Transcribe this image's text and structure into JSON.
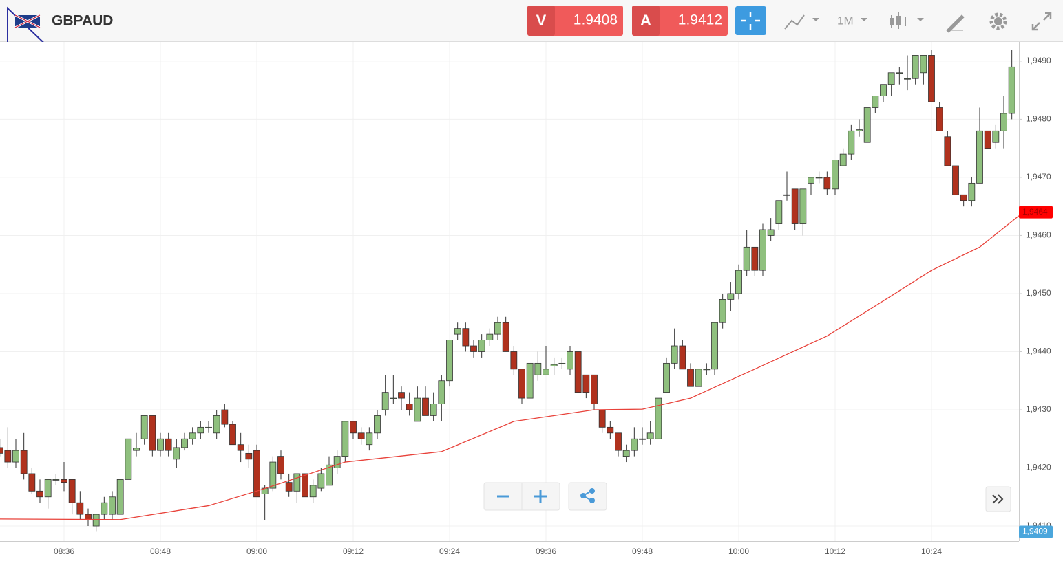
{
  "header": {
    "symbol": "GBPAUD",
    "sell_label": "V",
    "sell_price": "1.9408",
    "buy_label": "A",
    "buy_price": "1.9412",
    "timeframe": "1M"
  },
  "chart_data": {
    "type": "candlestick",
    "up_color": "#8fc07e",
    "down_color": "#b0321e",
    "categories": [
      null,
      null,
      null,
      null,
      null,
      null,
      null,
      null,
      "08:36",
      null,
      null,
      null,
      null,
      null,
      null,
      null,
      null,
      null,
      null,
      null,
      "08:48",
      null,
      null,
      null,
      null,
      null,
      null,
      null,
      null,
      null,
      null,
      null,
      "09:00",
      null,
      null,
      null,
      null,
      null,
      null,
      null,
      null,
      null,
      null,
      null,
      "09:12",
      null,
      null,
      null,
      null,
      null,
      null,
      null,
      null,
      null,
      null,
      null,
      "09:24",
      null,
      null,
      null,
      null,
      null,
      null,
      null,
      null,
      null,
      null,
      null,
      "09:36",
      null,
      null,
      null,
      null,
      null,
      null,
      null,
      null,
      null,
      null,
      null,
      "09:48",
      null,
      null,
      null,
      null,
      null,
      null,
      null,
      null,
      null,
      null,
      null,
      "10:00",
      null,
      null,
      null,
      null,
      null,
      null,
      null,
      null,
      null,
      null,
      null,
      "10:12",
      null,
      null,
      null,
      null,
      null,
      null,
      null,
      null,
      null,
      null,
      null,
      "10:24",
      null,
      null,
      null,
      null,
      null,
      null,
      null,
      null,
      null,
      null
    ],
    "ohlc": [
      [
        1.94235,
        1.9425,
        1.9422,
        1.94225
      ],
      [
        1.9423,
        1.9427,
        1.942,
        1.9421
      ],
      [
        1.9421,
        1.9425,
        1.942,
        1.9423
      ],
      [
        1.9423,
        1.9426,
        1.9418,
        1.9419
      ],
      [
        1.9419,
        1.942,
        1.94155,
        1.9416
      ],
      [
        1.9416,
        1.9418,
        1.9414,
        1.9415
      ],
      [
        1.9415,
        1.9418,
        1.9413,
        1.9418
      ],
      [
        1.9418,
        1.9419,
        1.9417,
        1.9418
      ],
      [
        1.9418,
        1.9421,
        1.9416,
        1.94175
      ],
      [
        1.9418,
        1.9418,
        1.9412,
        1.9414
      ],
      [
        1.9414,
        1.9416,
        1.9411,
        1.9412
      ],
      [
        1.9412,
        1.9413,
        1.941,
        1.9411
      ],
      [
        1.941,
        1.9412,
        1.9409,
        1.9412
      ],
      [
        1.9412,
        1.9415,
        1.9411,
        1.9414
      ],
      [
        1.9412,
        1.9416,
        1.9411,
        1.9415
      ],
      [
        1.9412,
        1.9418,
        1.9412,
        1.9418
      ],
      [
        1.9418,
        1.9425,
        1.9418,
        1.9425
      ],
      [
        1.9423,
        1.9426,
        1.9422,
        1.94234
      ],
      [
        1.9425,
        1.9429,
        1.9424,
        1.9429
      ],
      [
        1.9429,
        1.9429,
        1.9422,
        1.9423
      ],
      [
        1.9423,
        1.9426,
        1.9422,
        1.9425
      ],
      [
        1.9425,
        1.9426,
        1.9422,
        1.9423
      ],
      [
        1.94215,
        1.9425,
        1.942,
        1.94235
      ],
      [
        1.94235,
        1.9426,
        1.9423,
        1.9425
      ],
      [
        1.9425,
        1.9427,
        1.9424,
        1.9426
      ],
      [
        1.9426,
        1.9428,
        1.9425,
        1.9427
      ],
      [
        1.9427,
        1.9428,
        1.9426,
        1.9427
      ],
      [
        1.9426,
        1.943,
        1.9425,
        1.9429
      ],
      [
        1.943,
        1.9431,
        1.9427,
        1.94275
      ],
      [
        1.94275,
        1.9428,
        1.9424,
        1.9424
      ],
      [
        1.9424,
        1.9426,
        1.9421,
        1.9423
      ],
      [
        1.94225,
        1.9424,
        1.942,
        1.94215
      ],
      [
        1.9423,
        1.9424,
        1.9415,
        1.9415
      ],
      [
        1.94155,
        1.9417,
        1.9411,
        1.94165
      ],
      [
        1.94165,
        1.9422,
        1.9416,
        1.9421
      ],
      [
        1.9422,
        1.9423,
        1.9418,
        1.9419
      ],
      [
        1.94175,
        1.9419,
        1.9415,
        1.9416
      ],
      [
        1.9416,
        1.9419,
        1.9414,
        1.9419
      ],
      [
        1.9419,
        1.9419,
        1.9415,
        1.9415
      ],
      [
        1.9415,
        1.9418,
        1.9414,
        1.9417
      ],
      [
        1.94165,
        1.942,
        1.9416,
        1.9419
      ],
      [
        1.9417,
        1.9422,
        1.9417,
        1.94205
      ],
      [
        1.942,
        1.9423,
        1.9419,
        1.9422
      ],
      [
        1.9422,
        1.9428,
        1.9421,
        1.9428
      ],
      [
        1.9428,
        1.9428,
        1.9425,
        1.9426
      ],
      [
        1.9426,
        1.9427,
        1.9424,
        1.9425
      ],
      [
        1.9424,
        1.9427,
        1.9423,
        1.9426
      ],
      [
        1.9426,
        1.943,
        1.9425,
        1.9429
      ],
      [
        1.943,
        1.9436,
        1.9429,
        1.9433
      ],
      [
        1.9432,
        1.9436,
        1.9431,
        1.9432
      ],
      [
        1.9433,
        1.9434,
        1.943,
        1.9432
      ],
      [
        1.9431,
        1.9433,
        1.9429,
        1.943
      ],
      [
        1.9428,
        1.9434,
        1.9428,
        1.9432
      ],
      [
        1.9432,
        1.9434,
        1.9429,
        1.9429
      ],
      [
        1.9429,
        1.9433,
        1.9428,
        1.9431
      ],
      [
        1.9431,
        1.9436,
        1.9428,
        1.9435
      ],
      [
        1.9435,
        1.9442,
        1.9434,
        1.9442
      ],
      [
        1.9443,
        1.9445,
        1.9442,
        1.9444
      ],
      [
        1.9444,
        1.9445,
        1.944,
        1.9441
      ],
      [
        1.9441,
        1.9442,
        1.9439,
        1.944
      ],
      [
        1.944,
        1.9443,
        1.9439,
        1.9442
      ],
      [
        1.9442,
        1.9444,
        1.9441,
        1.9443
      ],
      [
        1.9443,
        1.9446,
        1.9442,
        1.9445
      ],
      [
        1.9445,
        1.9446,
        1.944,
        1.944
      ],
      [
        1.944,
        1.9441,
        1.9436,
        1.9437
      ],
      [
        1.9437,
        1.9437,
        1.9431,
        1.9432
      ],
      [
        1.9432,
        1.9438,
        1.9432,
        1.9438
      ],
      [
        1.9436,
        1.944,
        1.9435,
        1.9438
      ],
      [
        1.9436,
        1.9441,
        1.9436,
        1.9437
      ],
      [
        1.94375,
        1.9439,
        1.9436,
        1.94378
      ],
      [
        1.9438,
        1.9439,
        1.9437,
        1.9438
      ],
      [
        1.9437,
        1.9441,
        1.9436,
        1.944
      ],
      [
        1.944,
        1.944,
        1.9433,
        1.9433
      ],
      [
        1.9436,
        1.9436,
        1.9432,
        1.9433
      ],
      [
        1.9436,
        1.9436,
        1.943,
        1.9431
      ],
      [
        1.943,
        1.943,
        1.9426,
        1.9427
      ],
      [
        1.9427,
        1.9428,
        1.9425,
        1.9426
      ],
      [
        1.9426,
        1.9426,
        1.9422,
        1.9423
      ],
      [
        1.9422,
        1.9424,
        1.9421,
        1.9423
      ],
      [
        1.9423,
        1.9427,
        1.9422,
        1.9425
      ],
      [
        1.9425,
        1.9427,
        1.9424,
        1.9425
      ],
      [
        1.9425,
        1.9428,
        1.9424,
        1.9426
      ],
      [
        1.9425,
        1.9432,
        1.9425,
        1.9432
      ],
      [
        1.9433,
        1.9439,
        1.9433,
        1.9438
      ],
      [
        1.9438,
        1.9444,
        1.9437,
        1.9441
      ],
      [
        1.9441,
        1.9442,
        1.9437,
        1.9437
      ],
      [
        1.9437,
        1.9438,
        1.9434,
        1.9434
      ],
      [
        1.9434,
        1.9437,
        1.9434,
        1.9437
      ],
      [
        1.9437,
        1.9438,
        1.9436,
        1.9437
      ],
      [
        1.9437,
        1.9445,
        1.9436,
        1.9445
      ],
      [
        1.9445,
        1.945,
        1.9444,
        1.9449
      ],
      [
        1.9449,
        1.9452,
        1.9447,
        1.945
      ],
      [
        1.945,
        1.9455,
        1.9449,
        1.9454
      ],
      [
        1.9454,
        1.9461,
        1.9453,
        1.9458
      ],
      [
        1.9458,
        1.9458,
        1.9453,
        1.9454
      ],
      [
        1.9454,
        1.9462,
        1.9453,
        1.9461
      ],
      [
        1.946,
        1.9463,
        1.9459,
        1.9461
      ],
      [
        1.9462,
        1.9466,
        1.9461,
        1.9466
      ],
      [
        1.9467,
        1.9471,
        1.9466,
        1.9467
      ],
      [
        1.9468,
        1.9468,
        1.9461,
        1.9462
      ],
      [
        1.9462,
        1.9468,
        1.946,
        1.9468
      ],
      [
        1.9469,
        1.947,
        1.9467,
        1.947
      ],
      [
        1.947,
        1.9471,
        1.9469,
        1.947
      ],
      [
        1.947,
        1.9471,
        1.9467,
        1.9468
      ],
      [
        1.9468,
        1.9473,
        1.9467,
        1.9473
      ],
      [
        1.9472,
        1.9475,
        1.9472,
        1.9474
      ],
      [
        1.9474,
        1.9479,
        1.9473,
        1.9478
      ],
      [
        1.9478,
        1.948,
        1.9477,
        1.94782
      ],
      [
        1.9476,
        1.9482,
        1.9476,
        1.9482
      ],
      [
        1.9482,
        1.9484,
        1.9481,
        1.9484
      ],
      [
        1.9484,
        1.9486,
        1.9483,
        1.9486
      ],
      [
        1.9486,
        1.9488,
        1.9484,
        1.9488
      ],
      [
        1.9488,
        1.9489,
        1.9486,
        1.9488
      ],
      [
        1.9487,
        1.9491,
        1.9485,
        1.9487
      ],
      [
        1.9487,
        1.9491,
        1.9486,
        1.9491
      ],
      [
        1.9488,
        1.9491,
        1.9486,
        1.9491
      ],
      [
        1.9491,
        1.9492,
        1.9483,
        1.9483
      ],
      [
        1.9482,
        1.9483,
        1.9478,
        1.9478
      ],
      [
        1.9477,
        1.9478,
        1.9472,
        1.9472
      ],
      [
        1.9472,
        1.9472,
        1.9467,
        1.9467
      ],
      [
        1.9467,
        1.9467,
        1.9465,
        1.9466
      ],
      [
        1.9466,
        1.947,
        1.9465,
        1.9469
      ],
      [
        1.9469,
        1.9482,
        1.9469,
        1.9478
      ],
      [
        1.9478,
        1.9478,
        1.9475,
        1.9475
      ],
      [
        1.9476,
        1.9479,
        1.9475,
        1.9478
      ],
      [
        1.9478,
        1.9484,
        1.9475,
        1.9481
      ],
      [
        1.9481,
        1.9492,
        1.948,
        1.9489
      ]
    ],
    "moving_average": {
      "color": "#e8423a",
      "x": [
        0,
        15,
        26,
        32,
        43,
        55,
        64,
        74,
        80,
        86,
        94,
        103,
        111,
        116,
        122,
        127
      ],
      "values": [
        1.94112,
        1.94111,
        1.94135,
        1.9416,
        1.9421,
        1.94228,
        1.9428,
        1.943,
        1.94301,
        1.9432,
        1.9437,
        1.94427,
        1.94496,
        1.9454,
        1.9458,
        1.94634
      ]
    },
    "ma_marker": {
      "value": 1.9464,
      "label": "1,9464"
    },
    "price_marker": {
      "value": 1.9409,
      "label": "1,9409"
    },
    "ylim": [
      1.94074,
      1.94933
    ],
    "yticks": [
      {
        "value": 1.941,
        "label": "1,9410"
      },
      {
        "value": 1.942,
        "label": "1,9420"
      },
      {
        "value": 1.943,
        "label": "1,9430"
      },
      {
        "value": 1.944,
        "label": "1,9440"
      },
      {
        "value": 1.945,
        "label": "1,9450"
      },
      {
        "value": 1.946,
        "label": "1,9460"
      },
      {
        "value": 1.947,
        "label": "1,9470"
      },
      {
        "value": 1.948,
        "label": "1,9480"
      },
      {
        "value": 1.949,
        "label": "1,9490"
      }
    ],
    "grid": true
  }
}
